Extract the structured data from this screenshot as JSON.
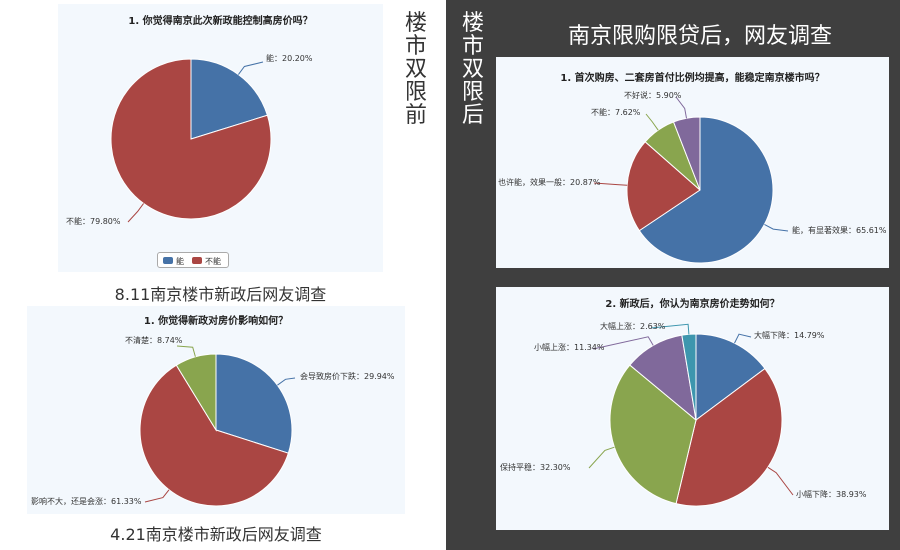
{
  "colors": {
    "blue": "#4572a7",
    "red": "#aa4643",
    "green": "#89a54e",
    "purple": "#80699b",
    "teal": "#3d96ae",
    "panel_bg": "#f3f8fd",
    "dark_bg": "#3f3f3f"
  },
  "labels": {
    "before": "楼市双限前",
    "after": "楼市双限后",
    "right_title": "南京限购限贷后，网友调查",
    "caption1": "8.11南京楼市新政后网友调查",
    "caption2": "4.21南京楼市新政后网友调查"
  },
  "legend": {
    "yes": "能",
    "no": "不能"
  },
  "chart_data": [
    {
      "type": "pie",
      "title": "1. 你觉得南京此次新政能控制高房价吗？",
      "series": [
        {
          "name": "能",
          "value": 20.2,
          "label": "能：20.20%",
          "color": "#4572a7"
        },
        {
          "name": "不能",
          "value": 79.8,
          "label": "不能：79.80%",
          "color": "#aa4643"
        }
      ],
      "legend": [
        "能",
        "不能"
      ]
    },
    {
      "type": "pie",
      "title": "1. 你觉得新政对房价影响如何？",
      "series": [
        {
          "name": "会导致房价下跌",
          "value": 29.94,
          "label": "会导致房价下跌：29.94%",
          "color": "#4572a7"
        },
        {
          "name": "影响不大，还是会涨",
          "value": 61.33,
          "label": "影响不大，还是会涨：61.33%",
          "color": "#aa4643"
        },
        {
          "name": "不清楚",
          "value": 8.74,
          "label": "不清楚：8.74%",
          "color": "#89a54e"
        }
      ]
    },
    {
      "type": "pie",
      "title": "1. 首次购房、二套房首付比例均提高，能稳定南京楼市吗？",
      "series": [
        {
          "name": "能，有显著效果",
          "value": 65.61,
          "label": "能，有显著效果：65.61%",
          "color": "#4572a7"
        },
        {
          "name": "也许能，效果一般",
          "value": 20.87,
          "label": "也许能，效果一般：20.87%",
          "color": "#aa4643"
        },
        {
          "name": "不能",
          "value": 7.62,
          "label": "不能：7.62%",
          "color": "#89a54e"
        },
        {
          "name": "不好说",
          "value": 5.9,
          "label": "不好说：5.90%",
          "color": "#80699b"
        }
      ]
    },
    {
      "type": "pie",
      "title": "2. 新政后，你认为南京房价走势如何？",
      "series": [
        {
          "name": "大幅下降",
          "value": 14.79,
          "label": "大幅下降：14.79%",
          "color": "#4572a7"
        },
        {
          "name": "小幅下降",
          "value": 38.93,
          "label": "小幅下降：38.93%",
          "color": "#aa4643"
        },
        {
          "name": "保持平稳",
          "value": 32.3,
          "label": "保持平稳：32.30%",
          "color": "#89a54e"
        },
        {
          "name": "小幅上涨",
          "value": 11.34,
          "label": "小幅上涨：11.34%",
          "color": "#80699b"
        },
        {
          "name": "大幅上涨",
          "value": 2.63,
          "label": "大幅上涨：2.63%",
          "color": "#3d96ae"
        }
      ]
    }
  ]
}
